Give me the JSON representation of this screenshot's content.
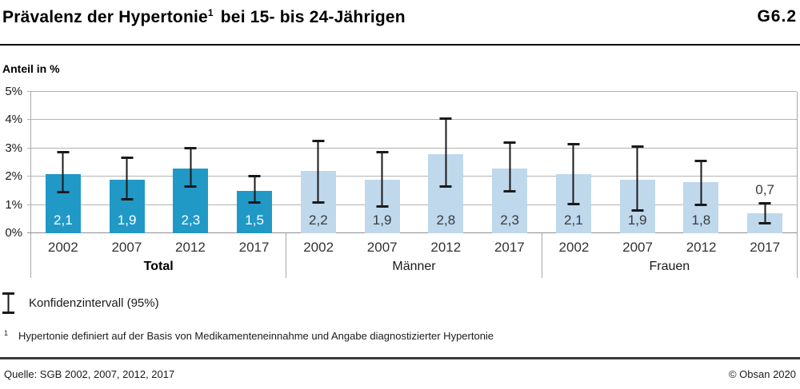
{
  "header": {
    "title_main": "Prävalenz der Hypertonie",
    "title_marker": "1",
    "title_rest": "bei 15- bis 24-Jährigen",
    "figure_id": "G6.2"
  },
  "chart_data": {
    "type": "bar",
    "title": "Prävalenz der Hypertonie¹ bei 15- bis 24-Jährigen",
    "ylabel": "Anteil in %",
    "ylim": [
      0,
      5
    ],
    "yticks": [
      "0%",
      "1%",
      "2%",
      "3%",
      "4%",
      "5%"
    ],
    "grid": true,
    "categories": [
      "2002",
      "2007",
      "2012",
      "2017"
    ],
    "groups": [
      {
        "name": "Total",
        "emphasis": true,
        "color": "#2199c7",
        "value_label_color": "#ffffff",
        "values": [
          2.1,
          1.9,
          2.3,
          1.5
        ],
        "value_labels": [
          "2,1",
          "1,9",
          "2,3",
          "1,5"
        ],
        "ci": [
          [
            1.4,
            2.9
          ],
          [
            1.15,
            2.7
          ],
          [
            1.6,
            3.05
          ],
          [
            1.05,
            2.05
          ]
        ]
      },
      {
        "name": "Männer",
        "emphasis": false,
        "color": "#bfd8ec",
        "value_label_color": "#3a3a3a",
        "values": [
          2.2,
          1.9,
          2.8,
          2.3
        ],
        "value_labels": [
          "2,2",
          "1,9",
          "2,8",
          "2,3"
        ],
        "ci": [
          [
            1.05,
            3.3
          ],
          [
            0.9,
            2.9
          ],
          [
            1.6,
            4.1
          ],
          [
            1.45,
            3.25
          ]
        ]
      },
      {
        "name": "Frauen",
        "emphasis": false,
        "color": "#bfd8ec",
        "value_label_color": "#3a3a3a",
        "values": [
          2.1,
          1.9,
          1.8,
          0.7
        ],
        "value_labels": [
          "2,1",
          "1,9",
          "1,8",
          "0,7"
        ],
        "ci": [
          [
            1.0,
            3.2
          ],
          [
            0.75,
            3.1
          ],
          [
            0.95,
            2.6
          ],
          [
            0.3,
            1.1
          ]
        ]
      }
    ],
    "label_inside_min": 1.0,
    "ci_note": "error bars show 95% confidence interval"
  },
  "legend": {
    "label": "Konfidenzintervall (95%)"
  },
  "footnote": {
    "marker": "1",
    "text": "Hypertonie definiert auf der Basis von Medikamenteneinnahme und Angabe diagnostizierter Hypertonie"
  },
  "footer": {
    "source": "Quelle: SGB 2002, 2007, 2012, 2017",
    "copyright": "© Obsan 2020"
  },
  "colors": {
    "primary_bar": "#2199c7",
    "secondary_bar": "#bfd8ec",
    "gridline": "#b3b3b3",
    "error_bar": "#1a1a1a"
  }
}
